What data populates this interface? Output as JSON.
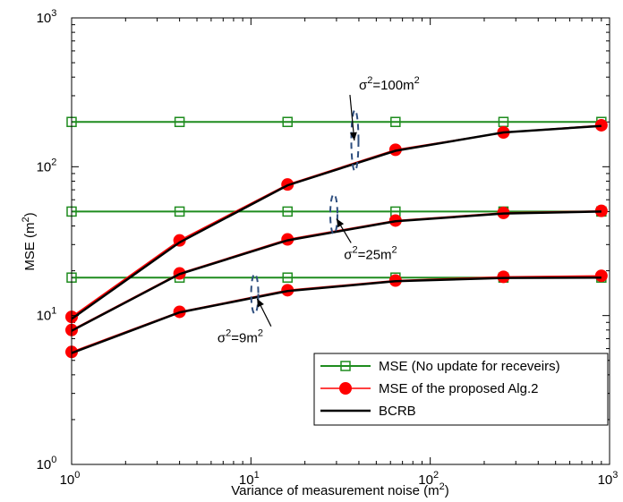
{
  "chart_data": {
    "type": "line",
    "xscale": "log",
    "yscale": "log",
    "xlim": [
      1,
      1000
    ],
    "ylim": [
      1,
      1000
    ],
    "xlabel": {
      "base": "Variance of measurement noise (m",
      "sup": "2",
      "tail": ")"
    },
    "ylabel": {
      "base": "MSE (m",
      "sup": "2",
      "tail": ")"
    },
    "grid": false,
    "legend_position": "bottom-right",
    "x_ticks": [
      {
        "value": 1,
        "base": "10",
        "exp": "0"
      },
      {
        "value": 10,
        "base": "10",
        "exp": "1"
      },
      {
        "value": 100,
        "base": "10",
        "exp": "2"
      },
      {
        "value": 1000,
        "base": "10",
        "exp": "3"
      }
    ],
    "y_ticks": [
      {
        "value": 1,
        "base": "10",
        "exp": "0"
      },
      {
        "value": 10,
        "base": "10",
        "exp": "1"
      },
      {
        "value": 100,
        "base": "10",
        "exp": "2"
      },
      {
        "value": 1000,
        "base": "10",
        "exp": "3"
      }
    ],
    "x": [
      1,
      4,
      16,
      64,
      256,
      900
    ],
    "series": [
      {
        "name": "MSE (No update for receveirs)",
        "group": "100",
        "style": "green-square",
        "color": "#1e8c1e",
        "values": [
          200,
          200,
          200,
          200,
          200,
          200
        ]
      },
      {
        "name": "MSE (No update for receveirs)",
        "group": "25",
        "style": "green-square",
        "color": "#1e8c1e",
        "values": [
          50,
          50,
          50,
          50,
          50,
          50
        ]
      },
      {
        "name": "MSE (No update for receveirs)",
        "group": "9",
        "style": "green-square",
        "color": "#1e8c1e",
        "values": [
          18,
          18,
          18,
          18,
          18,
          18
        ]
      },
      {
        "name": "MSE of the proposed Alg.2",
        "group": "100",
        "style": "red-circle",
        "color": "#ff0000",
        "values": [
          9.8,
          32,
          76,
          130,
          170,
          190
        ]
      },
      {
        "name": "MSE of the proposed Alg.2",
        "group": "25",
        "style": "red-circle",
        "color": "#ff0000",
        "values": [
          8.0,
          19.2,
          32.5,
          43.5,
          49.0,
          50.5
        ]
      },
      {
        "name": "MSE of the proposed Alg.2",
        "group": "9",
        "style": "red-circle",
        "color": "#ff0000",
        "values": [
          5.7,
          10.6,
          14.8,
          17.2,
          18.2,
          18.5
        ]
      },
      {
        "name": "BCRB",
        "group": "100",
        "style": "black-line",
        "color": "#000000",
        "values": [
          9.5,
          31,
          75,
          128,
          170,
          188
        ]
      },
      {
        "name": "BCRB",
        "group": "25",
        "style": "black-line",
        "color": "#000000",
        "values": [
          7.9,
          19,
          32,
          43,
          48.5,
          50
        ]
      },
      {
        "name": "BCRB",
        "group": "9",
        "style": "black-line",
        "color": "#000000",
        "values": [
          5.6,
          10.5,
          14.6,
          17.0,
          17.9,
          18.0
        ]
      }
    ],
    "legend": [
      {
        "label": "MSE (No update for receveirs)",
        "style": "green-square",
        "color": "#1e8c1e"
      },
      {
        "label": "MSE of the proposed Alg.2",
        "style": "red-circle",
        "color": "#ff0000"
      },
      {
        "label": "BCRB",
        "style": "black-line",
        "color": "#000000"
      }
    ],
    "annotations": [
      {
        "id": "a100",
        "sym": "σ",
        "exp": "2",
        "rest": "=100m",
        "rest_exp": "2",
        "ellipse_x": 38,
        "ellipse_y": 150,
        "text_x": 40,
        "text_y": 330
      },
      {
        "id": "a25",
        "sym": "σ",
        "exp": "2",
        "rest": "=25m",
        "rest_exp": "2",
        "ellipse_x": 29,
        "ellipse_y": 48,
        "text_x": 33,
        "text_y": 24
      },
      {
        "id": "a9",
        "sym": "σ",
        "exp": "2",
        "rest": "=9m",
        "rest_exp": "2",
        "ellipse_x": 10.5,
        "ellipse_y": 14,
        "text_x": 6.5,
        "text_y": 6.6
      }
    ],
    "ellipse_color": "#2f4f7f"
  }
}
